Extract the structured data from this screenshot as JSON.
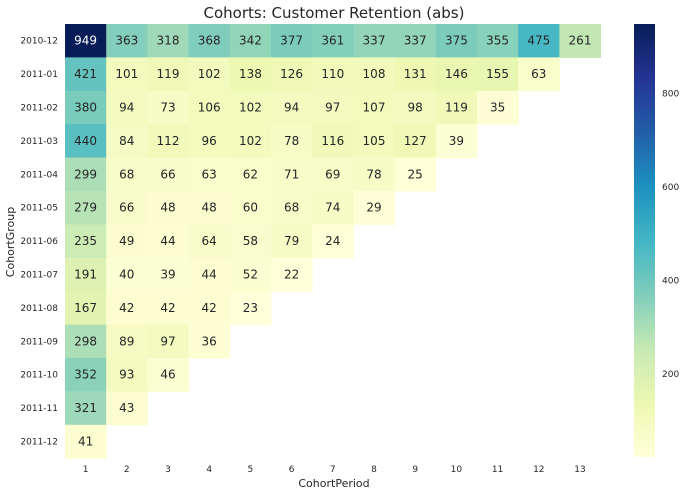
{
  "chart_data": {
    "type": "heatmap",
    "title": "Cohorts: Customer Retention (abs)",
    "xlabel": "CohortPeriod",
    "ylabel": "CohortGroup",
    "x_categories": [
      "1",
      "2",
      "3",
      "4",
      "5",
      "6",
      "7",
      "8",
      "9",
      "10",
      "11",
      "12",
      "13"
    ],
    "y_categories": [
      "2010-12",
      "2011-01",
      "2011-02",
      "2011-03",
      "2011-04",
      "2011-05",
      "2011-06",
      "2011-07",
      "2011-08",
      "2011-09",
      "2011-10",
      "2011-11",
      "2011-12"
    ],
    "values": [
      [
        949,
        363,
        318,
        368,
        342,
        377,
        361,
        337,
        337,
        375,
        355,
        475,
        261
      ],
      [
        421,
        101,
        119,
        102,
        138,
        126,
        110,
        108,
        131,
        146,
        155,
        63,
        null
      ],
      [
        380,
        94,
        73,
        106,
        102,
        94,
        97,
        107,
        98,
        119,
        35,
        null,
        null
      ],
      [
        440,
        84,
        112,
        96,
        102,
        78,
        116,
        105,
        127,
        39,
        null,
        null,
        null
      ],
      [
        299,
        68,
        66,
        63,
        62,
        71,
        69,
        78,
        25,
        null,
        null,
        null,
        null
      ],
      [
        279,
        66,
        48,
        48,
        60,
        68,
        74,
        29,
        null,
        null,
        null,
        null,
        null
      ],
      [
        235,
        49,
        44,
        64,
        58,
        79,
        24,
        null,
        null,
        null,
        null,
        null,
        null
      ],
      [
        191,
        40,
        39,
        44,
        52,
        22,
        null,
        null,
        null,
        null,
        null,
        null,
        null
      ],
      [
        167,
        42,
        42,
        42,
        23,
        null,
        null,
        null,
        null,
        null,
        null,
        null,
        null
      ],
      [
        298,
        89,
        97,
        36,
        null,
        null,
        null,
        null,
        null,
        null,
        null,
        null,
        null
      ],
      [
        352,
        93,
        46,
        null,
        null,
        null,
        null,
        null,
        null,
        null,
        null,
        null,
        null
      ],
      [
        321,
        43,
        null,
        null,
        null,
        null,
        null,
        null,
        null,
        null,
        null,
        null,
        null
      ],
      [
        41,
        null,
        null,
        null,
        null,
        null,
        null,
        null,
        null,
        null,
        null,
        null,
        null
      ]
    ],
    "colormap": "YlGnBu",
    "vmin": 22,
    "vmax": 949,
    "colorbar_ticks": [
      200,
      400,
      600,
      800
    ],
    "colors": [
      "#ffffd9",
      "#edf8b1",
      "#c7e9b4",
      "#7fcdbb",
      "#41b6c4",
      "#1d91c0",
      "#225ea8",
      "#253494",
      "#081d58"
    ]
  }
}
